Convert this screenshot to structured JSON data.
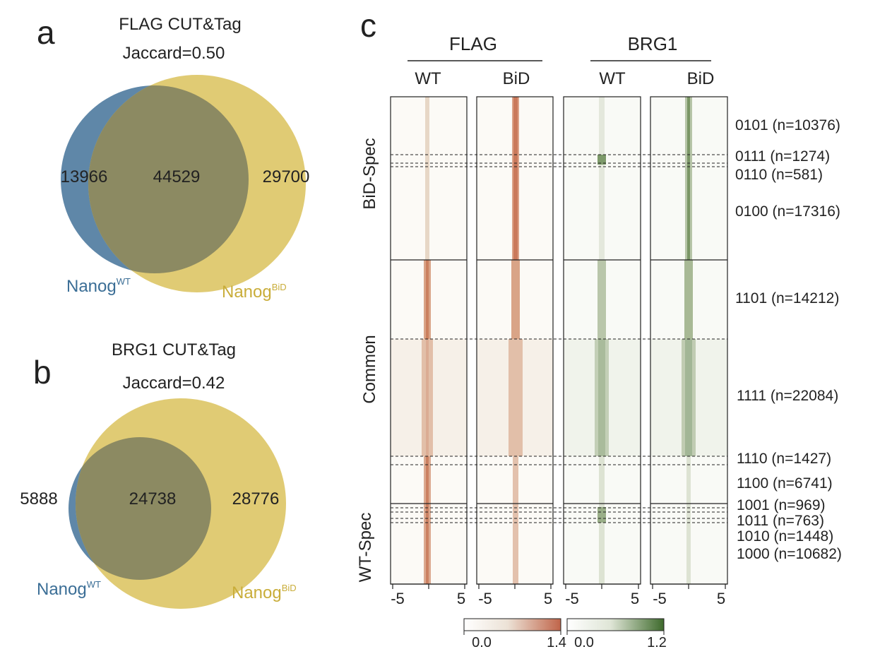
{
  "panel_a": {
    "letter": "a",
    "title": "FLAG CUT&Tag",
    "jaccard": "Jaccard=0.50",
    "left_count": "13966",
    "overlap_count": "44529",
    "right_count": "29700",
    "left_label": "Nanog",
    "left_sup": "WT",
    "right_label": "Nanog",
    "right_sup": "BiD",
    "left_color": "#5f87a8",
    "right_color": "#e0cb74",
    "overlap_color": "#8c8a62"
  },
  "panel_b": {
    "letter": "b",
    "title": "BRG1 CUT&Tag",
    "jaccard": "Jaccard=0.42",
    "left_count": "5888",
    "overlap_count": "24738",
    "right_count": "28776",
    "left_label": "Nanog",
    "left_sup": "WT",
    "right_label": "Nanog",
    "right_sup": "BiD"
  },
  "panel_c": {
    "letter": "c",
    "groups": [
      {
        "name": "FLAG",
        "columns": [
          "WT",
          "BiD"
        ],
        "color": "#c0654a"
      },
      {
        "name": "BRG1",
        "columns": [
          "WT",
          "BiD"
        ],
        "color": "#3e6a2c"
      }
    ],
    "row_groups": [
      "BiD-Spec",
      "Common",
      "WT-Spec"
    ],
    "clusters": [
      "0101 (n=10376)",
      "0111 (n=1274)",
      "0110 (n=581)",
      "0100 (n=17316)",
      "1101 (n=14212)",
      "1111 (n=22084)",
      "1110 (n=1427)",
      "1100 (n=6741)",
      "1001 (n=969)",
      "1011 (n=763)",
      "1010 (n=1448)",
      "1000 (n=10682)"
    ],
    "x_ticks": [
      "-5",
      "5"
    ],
    "colorbars": [
      {
        "min": "0.0",
        "max": "1.4",
        "color": "#c0654a"
      },
      {
        "min": "0.0",
        "max": "1.2",
        "color": "#3e6a2c"
      }
    ]
  }
}
